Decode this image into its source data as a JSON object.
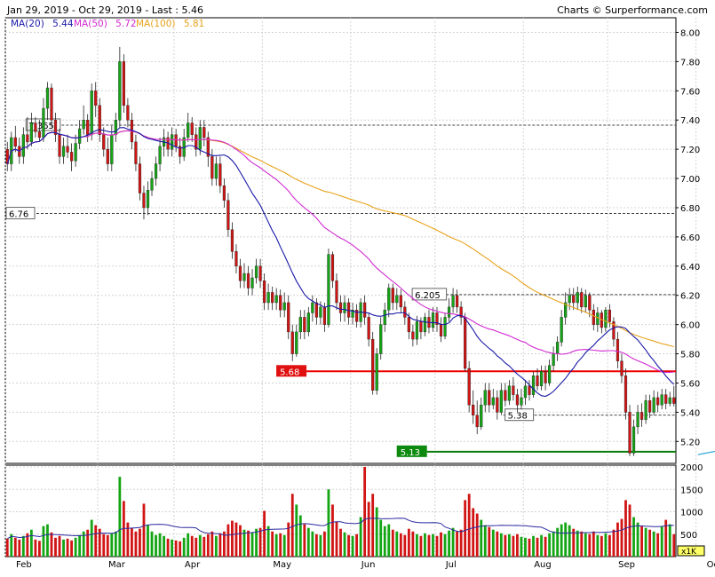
{
  "header": {
    "date_range": "Jan 29, 2019 - Oct 29, 2019 - Last : 5.46",
    "source": "Charts © Surperformance.com"
  },
  "legend": [
    {
      "label": "MA(20)",
      "value": "5.44",
      "color": "#1a1aa8"
    },
    {
      "label": "MA(50)",
      "value": "5.72",
      "color": "#d12ad1"
    },
    {
      "label": "MA(100)",
      "value": "5.81",
      "color": "#e8a21a"
    }
  ],
  "colors": {
    "up": "#14a514",
    "down": "#d11414",
    "red_line": "#ee0000",
    "green_line": "#0a7a0a",
    "trend": "#35a8d8"
  },
  "annotations": {
    "ref_high": "7.365",
    "ref_mid": "6.205",
    "ref_left": "6.76",
    "ref_low": "5.38",
    "support_red": "5.68",
    "support_green": "5.13"
  },
  "volume_unit": "x1K",
  "chart_data": {
    "type": "candlestick",
    "price_axis": {
      "min": 5.05,
      "max": 8.1,
      "ticks": [
        "5.20",
        "5.40",
        "5.60",
        "5.80",
        "6.00",
        "6.20",
        "6.40",
        "6.60",
        "6.80",
        "7.00",
        "7.20",
        "7.40",
        "7.60",
        "7.80",
        "8.00"
      ]
    },
    "volume_axis": {
      "min": 0,
      "max": 2000,
      "ticks": [
        "500",
        "1000",
        "1500",
        "2000"
      ]
    },
    "x_labels": [
      "Feb",
      "Mar",
      "Apr",
      "May",
      "Jun",
      "Jul",
      "Aug",
      "Sep",
      "Oct"
    ],
    "x_label_positions": [
      0,
      23,
      42,
      64,
      86,
      107,
      129,
      150,
      172
    ],
    "horizontal_levels": [
      {
        "value": 7.365,
        "label": "7.365",
        "style": "dashed"
      },
      {
        "value": 6.76,
        "label": "6.76",
        "style": "dashed"
      },
      {
        "value": 6.205,
        "label": "6.205",
        "style": "dashed"
      },
      {
        "value": 5.38,
        "label": "5.38",
        "style": "dashed"
      },
      {
        "value": 5.68,
        "label": "5.68",
        "style": "support-red"
      },
      {
        "value": 5.13,
        "label": "5.13",
        "style": "support-green"
      }
    ],
    "trendline": {
      "from": [
        172,
        5.11
      ],
      "to": [
        191,
        5.21
      ]
    },
    "candles": [
      [
        7.2,
        7.1,
        7.25,
        7.05,
        400
      ],
      [
        7.1,
        7.28,
        7.32,
        7.05,
        500
      ],
      [
        7.28,
        7.22,
        7.36,
        7.18,
        420
      ],
      [
        7.22,
        7.15,
        7.28,
        7.1,
        380
      ],
      [
        7.15,
        7.3,
        7.35,
        7.1,
        460
      ],
      [
        7.3,
        7.25,
        7.42,
        7.2,
        520
      ],
      [
        7.25,
        7.38,
        7.45,
        7.22,
        600
      ],
      [
        7.38,
        7.32,
        7.42,
        7.28,
        380
      ],
      [
        7.32,
        7.28,
        7.4,
        7.25,
        350
      ],
      [
        7.28,
        7.48,
        7.55,
        7.25,
        680
      ],
      [
        7.48,
        7.62,
        7.66,
        7.4,
        720
      ],
      [
        7.62,
        7.4,
        7.65,
        7.35,
        540
      ],
      [
        7.4,
        7.3,
        7.45,
        7.25,
        420
      ],
      [
        7.3,
        7.15,
        7.34,
        7.1,
        460
      ],
      [
        7.15,
        7.22,
        7.28,
        7.1,
        380
      ],
      [
        7.22,
        7.18,
        7.3,
        7.14,
        400
      ],
      [
        7.18,
        7.12,
        7.24,
        7.05,
        360
      ],
      [
        7.12,
        7.24,
        7.3,
        7.08,
        420
      ],
      [
        7.24,
        7.34,
        7.4,
        7.2,
        480
      ],
      [
        7.34,
        7.4,
        7.5,
        7.3,
        560
      ],
      [
        7.4,
        7.3,
        7.44,
        7.25,
        600
      ],
      [
        7.3,
        7.6,
        7.65,
        7.26,
        820
      ],
      [
        7.6,
        7.5,
        7.66,
        7.42,
        700
      ],
      [
        7.5,
        7.3,
        7.55,
        7.25,
        620
      ],
      [
        7.3,
        7.2,
        7.35,
        7.15,
        500
      ],
      [
        7.2,
        7.1,
        7.28,
        7.05,
        480
      ],
      [
        7.1,
        7.3,
        7.36,
        7.05,
        520
      ],
      [
        7.3,
        7.4,
        7.45,
        7.25,
        560
      ],
      [
        7.4,
        7.8,
        7.9,
        7.35,
        1780
      ],
      [
        7.8,
        7.5,
        7.85,
        7.45,
        1240
      ],
      [
        7.5,
        7.4,
        7.55,
        7.35,
        760
      ],
      [
        7.4,
        7.25,
        7.45,
        7.2,
        640
      ],
      [
        7.25,
        7.1,
        7.3,
        7.05,
        560
      ],
      [
        7.1,
        6.9,
        7.15,
        6.85,
        620
      ],
      [
        6.9,
        6.8,
        6.95,
        6.72,
        1180
      ],
      [
        6.8,
        6.92,
        6.98,
        6.75,
        700
      ],
      [
        6.92,
        7.0,
        7.05,
        6.88,
        560
      ],
      [
        7.0,
        7.1,
        7.15,
        6.95,
        480
      ],
      [
        7.1,
        7.22,
        7.28,
        7.05,
        520
      ],
      [
        7.22,
        7.28,
        7.34,
        7.15,
        460
      ],
      [
        7.28,
        7.2,
        7.32,
        7.15,
        400
      ],
      [
        7.2,
        7.3,
        7.35,
        7.15,
        380
      ],
      [
        7.3,
        7.22,
        7.34,
        7.18,
        360
      ],
      [
        7.22,
        7.15,
        7.28,
        7.1,
        340
      ],
      [
        7.15,
        7.28,
        7.34,
        7.12,
        420
      ],
      [
        7.28,
        7.38,
        7.45,
        7.25,
        520
      ],
      [
        7.38,
        7.3,
        7.42,
        7.25,
        460
      ],
      [
        7.3,
        7.2,
        7.35,
        7.15,
        420
      ],
      [
        7.2,
        7.35,
        7.4,
        7.16,
        480
      ],
      [
        7.35,
        7.28,
        7.4,
        7.22,
        440
      ],
      [
        7.28,
        7.15,
        7.32,
        7.08,
        500
      ],
      [
        7.15,
        7.0,
        7.2,
        6.95,
        560
      ],
      [
        7.0,
        7.1,
        7.15,
        6.95,
        460
      ],
      [
        7.1,
        6.95,
        7.15,
        6.9,
        520
      ],
      [
        6.95,
        6.85,
        7.0,
        6.8,
        560
      ],
      [
        6.85,
        6.65,
        6.9,
        6.6,
        720
      ],
      [
        6.65,
        6.5,
        6.7,
        6.45,
        800
      ],
      [
        6.5,
        6.4,
        6.55,
        6.35,
        760
      ],
      [
        6.4,
        6.3,
        6.45,
        6.25,
        700
      ],
      [
        6.3,
        6.35,
        6.42,
        6.25,
        600
      ],
      [
        6.35,
        6.25,
        6.4,
        6.2,
        580
      ],
      [
        6.25,
        6.32,
        6.38,
        6.2,
        540
      ],
      [
        6.32,
        6.4,
        6.45,
        6.28,
        620
      ],
      [
        6.4,
        6.3,
        6.45,
        6.25,
        640
      ],
      [
        6.3,
        6.15,
        6.35,
        6.1,
        1020
      ],
      [
        6.15,
        6.22,
        6.28,
        6.1,
        680
      ],
      [
        6.22,
        6.15,
        6.26,
        6.1,
        560
      ],
      [
        6.15,
        6.2,
        6.25,
        6.1,
        500
      ],
      [
        6.2,
        6.1,
        6.24,
        6.05,
        520
      ],
      [
        6.1,
        6.15,
        6.22,
        6.05,
        480
      ],
      [
        6.15,
        5.95,
        6.2,
        5.9,
        760
      ],
      [
        5.95,
        5.8,
        6.0,
        5.75,
        1400
      ],
      [
        5.8,
        5.95,
        6.0,
        5.78,
        1160
      ],
      [
        5.95,
        6.05,
        6.1,
        5.9,
        920
      ],
      [
        6.05,
        5.95,
        6.1,
        5.9,
        720
      ],
      [
        5.95,
        6.08,
        6.12,
        5.92,
        640
      ],
      [
        6.08,
        6.15,
        6.2,
        6.02,
        560
      ],
      [
        6.15,
        6.05,
        6.18,
        6.0,
        500
      ],
      [
        6.05,
        6.12,
        6.16,
        6.0,
        480
      ],
      [
        6.12,
        6.0,
        6.15,
        5.95,
        560
      ],
      [
        6.0,
        6.48,
        6.52,
        5.98,
        1500
      ],
      [
        6.48,
        6.3,
        6.5,
        6.25,
        1160
      ],
      [
        6.3,
        6.15,
        6.35,
        6.1,
        780
      ],
      [
        6.15,
        6.08,
        6.2,
        6.02,
        620
      ],
      [
        6.08,
        6.15,
        6.2,
        6.02,
        540
      ],
      [
        6.15,
        6.05,
        6.18,
        6.0,
        480
      ],
      [
        6.05,
        6.1,
        6.15,
        6.0,
        460
      ],
      [
        6.1,
        6.02,
        6.14,
        5.98,
        500
      ],
      [
        6.02,
        6.15,
        6.18,
        5.98,
        880
      ],
      [
        6.15,
        6.05,
        6.2,
        6.0,
        2000
      ],
      [
        6.05,
        5.9,
        6.08,
        5.85,
        1220
      ],
      [
        5.9,
        5.55,
        5.95,
        5.52,
        1400
      ],
      [
        5.55,
        5.8,
        5.84,
        5.52,
        1100
      ],
      [
        5.8,
        6.0,
        6.05,
        5.76,
        820
      ],
      [
        6.0,
        6.1,
        6.15,
        5.95,
        680
      ],
      [
        6.1,
        6.25,
        6.28,
        6.05,
        720
      ],
      [
        6.25,
        6.15,
        6.28,
        6.1,
        600
      ],
      [
        6.15,
        6.2,
        6.25,
        6.1,
        560
      ],
      [
        6.2,
        6.12,
        6.24,
        6.08,
        520
      ],
      [
        6.12,
        6.05,
        6.16,
        6.0,
        480
      ],
      [
        6.05,
        5.95,
        6.08,
        5.9,
        620
      ],
      [
        5.95,
        5.9,
        6.0,
        5.85,
        560
      ],
      [
        5.9,
        6.02,
        6.06,
        5.86,
        500
      ],
      [
        6.02,
        5.95,
        6.05,
        5.9,
        460
      ],
      [
        5.95,
        6.05,
        6.08,
        5.92,
        520
      ],
      [
        6.05,
        5.98,
        6.1,
        5.94,
        480
      ],
      [
        5.98,
        6.08,
        6.12,
        5.95,
        500
      ],
      [
        6.08,
        6.0,
        6.12,
        5.95,
        460
      ],
      [
        6.0,
        5.92,
        6.05,
        5.88,
        540
      ],
      [
        5.92,
        6.05,
        6.08,
        5.9,
        500
      ],
      [
        6.05,
        6.12,
        6.18,
        6.02,
        580
      ],
      [
        6.12,
        6.2,
        6.25,
        6.08,
        640
      ],
      [
        6.2,
        6.12,
        6.24,
        6.08,
        560
      ],
      [
        6.12,
        6.05,
        6.16,
        6.0,
        600
      ],
      [
        6.05,
        5.7,
        6.08,
        5.68,
        1260
      ],
      [
        5.7,
        5.45,
        5.75,
        5.4,
        1400
      ],
      [
        5.45,
        5.38,
        5.55,
        5.32,
        1080
      ],
      [
        5.38,
        5.3,
        5.48,
        5.25,
        960
      ],
      [
        5.3,
        5.45,
        5.5,
        5.28,
        820
      ],
      [
        5.45,
        5.55,
        5.6,
        5.4,
        700
      ],
      [
        5.55,
        5.45,
        5.6,
        5.4,
        660
      ],
      [
        5.45,
        5.5,
        5.56,
        5.42,
        600
      ],
      [
        5.5,
        5.4,
        5.55,
        5.35,
        560
      ],
      [
        5.4,
        5.55,
        5.6,
        5.38,
        520
      ],
      [
        5.55,
        5.48,
        5.6,
        5.44,
        480
      ],
      [
        5.48,
        5.58,
        5.62,
        5.45,
        500
      ],
      [
        5.58,
        5.52,
        5.64,
        5.48,
        460
      ],
      [
        5.52,
        5.45,
        5.56,
        5.4,
        500
      ],
      [
        5.45,
        5.5,
        5.56,
        5.42,
        440
      ],
      [
        5.5,
        5.58,
        5.62,
        5.45,
        420
      ],
      [
        5.58,
        5.52,
        5.62,
        5.48,
        400
      ],
      [
        5.52,
        5.65,
        5.68,
        5.5,
        460
      ],
      [
        5.65,
        5.58,
        5.7,
        5.55,
        420
      ],
      [
        5.58,
        5.68,
        5.72,
        5.55,
        480
      ],
      [
        5.68,
        5.6,
        5.72,
        5.55,
        440
      ],
      [
        5.6,
        5.72,
        5.76,
        5.58,
        520
      ],
      [
        5.72,
        5.8,
        5.85,
        5.68,
        560
      ],
      [
        5.8,
        5.88,
        5.92,
        5.75,
        640
      ],
      [
        5.88,
        6.05,
        6.1,
        5.85,
        720
      ],
      [
        6.05,
        6.15,
        6.22,
        6.0,
        760
      ],
      [
        6.15,
        6.2,
        6.25,
        6.1,
        700
      ],
      [
        6.2,
        6.15,
        6.25,
        6.1,
        620
      ],
      [
        6.15,
        6.22,
        6.26,
        6.1,
        580
      ],
      [
        6.22,
        6.12,
        6.25,
        6.08,
        560
      ],
      [
        6.12,
        6.2,
        6.24,
        6.08,
        520
      ],
      [
        6.2,
        6.1,
        6.22,
        6.05,
        500
      ],
      [
        6.1,
        6.0,
        6.14,
        5.96,
        560
      ],
      [
        6.0,
        6.08,
        6.12,
        5.95,
        480
      ],
      [
        6.08,
        5.98,
        6.1,
        5.94,
        460
      ],
      [
        5.98,
        6.1,
        6.12,
        5.95,
        520
      ],
      [
        6.1,
        6.02,
        6.14,
        5.98,
        480
      ],
      [
        6.02,
        5.9,
        6.05,
        5.85,
        600
      ],
      [
        5.9,
        5.75,
        5.95,
        5.7,
        760
      ],
      [
        5.75,
        5.65,
        5.8,
        5.6,
        840
      ],
      [
        5.65,
        5.4,
        5.7,
        5.35,
        1260
      ],
      [
        5.4,
        5.12,
        5.45,
        5.1,
        1160
      ],
      [
        5.12,
        5.3,
        5.35,
        5.1,
        880
      ],
      [
        5.3,
        5.4,
        5.45,
        5.25,
        760
      ],
      [
        5.4,
        5.35,
        5.46,
        5.3,
        680
      ],
      [
        5.35,
        5.48,
        5.52,
        5.32,
        640
      ],
      [
        5.48,
        5.4,
        5.52,
        5.36,
        600
      ],
      [
        5.4,
        5.5,
        5.55,
        5.38,
        560
      ],
      [
        5.5,
        5.45,
        5.54,
        5.4,
        520
      ],
      [
        5.45,
        5.52,
        5.56,
        5.42,
        680
      ],
      [
        5.52,
        5.46,
        5.56,
        5.42,
        820
      ],
      [
        5.46,
        5.5,
        5.54,
        5.44,
        720
      ],
      [
        5.5,
        5.46,
        5.58,
        5.44,
        500
      ]
    ]
  }
}
